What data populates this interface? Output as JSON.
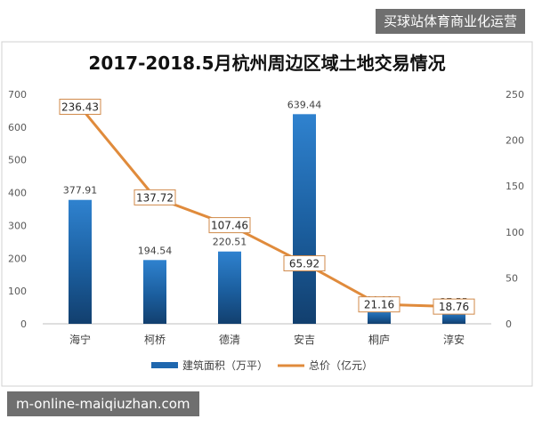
{
  "watermarks": {
    "top_right": "买球站体育商业化运营",
    "bottom_left": "m-online-maiqiuzhan.com"
  },
  "chart_data": {
    "type": "bar",
    "title": "2017-2018.5月杭州周边区域土地交易情况",
    "categories": [
      "海宁",
      "柯桥",
      "德清",
      "安吉",
      "桐庐",
      "淳安"
    ],
    "series": [
      {
        "name": "建筑面积（万平）",
        "type": "bar",
        "axis": "left",
        "color": "#1F67AE",
        "values": [
          377.91,
          194.54,
          220.51,
          639.44,
          44.01,
          37.55
        ],
        "labels": [
          "377.91",
          "194.54",
          "220.51",
          "639.44",
          "44.01",
          "37.55"
        ]
      },
      {
        "name": "总价（亿元）",
        "type": "line",
        "axis": "right",
        "color": "#E08B3C",
        "values": [
          236.43,
          137.72,
          107.46,
          65.92,
          21.16,
          18.76
        ],
        "labels": [
          "236.43",
          "137.72",
          "107.46",
          "65.92",
          "21.16",
          "18.76"
        ]
      }
    ],
    "y_left": {
      "min": 0,
      "max": 700,
      "ticks": [
        "0",
        "100",
        "200",
        "300",
        "400",
        "500",
        "600",
        "700"
      ]
    },
    "y_right": {
      "min": 0,
      "max": 250,
      "ticks": [
        "0",
        "50",
        "100",
        "150",
        "200",
        "250"
      ]
    },
    "grid": false,
    "legend": "bottom"
  }
}
